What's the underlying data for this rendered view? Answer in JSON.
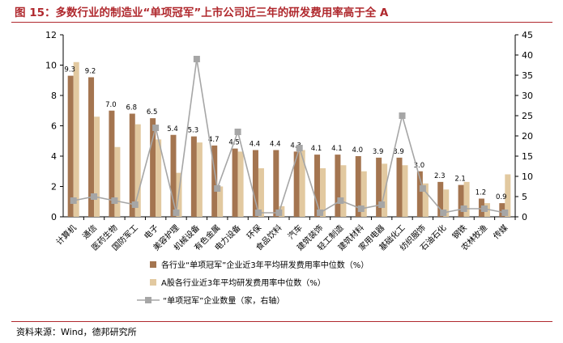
{
  "title": "图 15：多数行业的制造业“单项冠军”上市公司近三年的研发费用率高于全 A",
  "source": "资料来源：Wind，德邦研究所",
  "colors": {
    "title": "#b0292e",
    "series1": "#a47550",
    "series2": "#e2c9a0",
    "series3": "#a6a6a6"
  },
  "chart_data": {
    "type": "bar",
    "categories": [
      "计算机",
      "通信",
      "医药生物",
      "国防军工",
      "电子",
      "美容护理",
      "机械设备",
      "有色金属",
      "电力设备",
      "环保",
      "食品饮料",
      "汽车",
      "建筑装饰",
      "轻工制造",
      "建筑材料",
      "家用电器",
      "基础化工",
      "纺织服饰",
      "石油石化",
      "钢铁",
      "农林牧渔",
      "传媒"
    ],
    "series": [
      {
        "name": "各行业“单项冠军”企业近3年平均研发费用率中位数（%）",
        "axis": "left",
        "type": "bar",
        "values": [
          9.3,
          9.2,
          7.0,
          6.8,
          6.5,
          5.4,
          5.3,
          4.7,
          4.5,
          4.4,
          4.4,
          4.3,
          4.1,
          4.1,
          4.0,
          3.9,
          3.9,
          3.0,
          2.3,
          2.1,
          1.2,
          0.9
        ],
        "labels": [
          "9.3",
          "9.2",
          "7.0",
          "6.8",
          "6.5",
          "5.4",
          "5.3",
          "4.7",
          "4.5",
          "4.4",
          "4.4",
          "4.3",
          "4.1",
          "4.1",
          "4.0",
          "3.9",
          "3.9",
          "3.0",
          "2.3",
          "2.1",
          "1.2",
          "0.9"
        ]
      },
      {
        "name": "A股各行业近3年平均研发费用率中位数（%）",
        "axis": "left",
        "type": "bar",
        "values": [
          10.2,
          6.6,
          4.6,
          6.1,
          5.1,
          2.9,
          4.9,
          2.0,
          4.3,
          3.2,
          0.7,
          4.4,
          3.2,
          3.4,
          3.0,
          3.5,
          3.4,
          2.2,
          1.8,
          2.3,
          0.9,
          2.8
        ]
      },
      {
        "name": "“单项冠军”企业数量（家，右轴）",
        "axis": "right",
        "type": "line",
        "values": [
          4,
          5,
          4,
          3,
          22,
          1,
          39,
          7,
          21,
          1,
          1,
          17,
          1,
          4,
          2,
          3,
          25,
          7,
          1,
          2,
          2,
          1
        ]
      }
    ],
    "y_left": {
      "ylim": [
        0,
        12
      ],
      "ticks": [
        "0",
        "2",
        "4",
        "6",
        "8",
        "10",
        "12"
      ]
    },
    "y_right": {
      "ylim": [
        0,
        45
      ],
      "ticks": [
        "0",
        "5",
        "10",
        "15",
        "20",
        "25",
        "30",
        "35",
        "40",
        "45"
      ]
    },
    "grid": false,
    "legend_placement": "bottom"
  }
}
